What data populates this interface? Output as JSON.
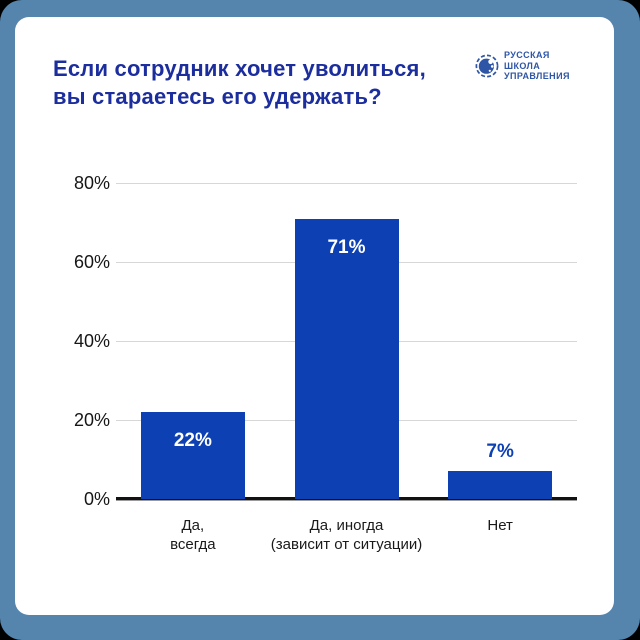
{
  "frame": {
    "outer_background": "#5585AD",
    "card_background": "#FFFFFF"
  },
  "header": {
    "title_line1": "Если сотрудник хочет уволиться,",
    "title_line2": "вы стараетесь его удержать?",
    "title_color": "#1C2E9E",
    "logo": {
      "icon": "globe-icon",
      "color": "#2E55A6",
      "lines": [
        "РУССКАЯ",
        "ШКОЛА",
        "УПРАВЛЕНИЯ"
      ]
    }
  },
  "chart_data": {
    "type": "bar",
    "title": "Если сотрудник хочет уволиться, вы стараетесь его удержать?",
    "categories": [
      [
        "Да,",
        "всегда"
      ],
      [
        "Да, иногда",
        "(зависит от ситуации)"
      ],
      [
        "Нет"
      ]
    ],
    "values": [
      22,
      71,
      7
    ],
    "value_labels": [
      "22%",
      "71%",
      "7%"
    ],
    "xlabel": "",
    "ylabel": "",
    "ylim": [
      0,
      80
    ],
    "yticks": [
      {
        "value": 0,
        "label": "0%"
      },
      {
        "value": 20,
        "label": "20%"
      },
      {
        "value": 40,
        "label": "40%"
      },
      {
        "value": 60,
        "label": "60%"
      },
      {
        "value": 80,
        "label": "80%"
      }
    ],
    "grid": true,
    "legend": false,
    "bar_color": "#0D41B3",
    "inside_label_color": "#FFFFFF",
    "outside_label_color": "#0D41B3",
    "grid_color": "#D7D7D7",
    "axis_color": "#121212"
  }
}
